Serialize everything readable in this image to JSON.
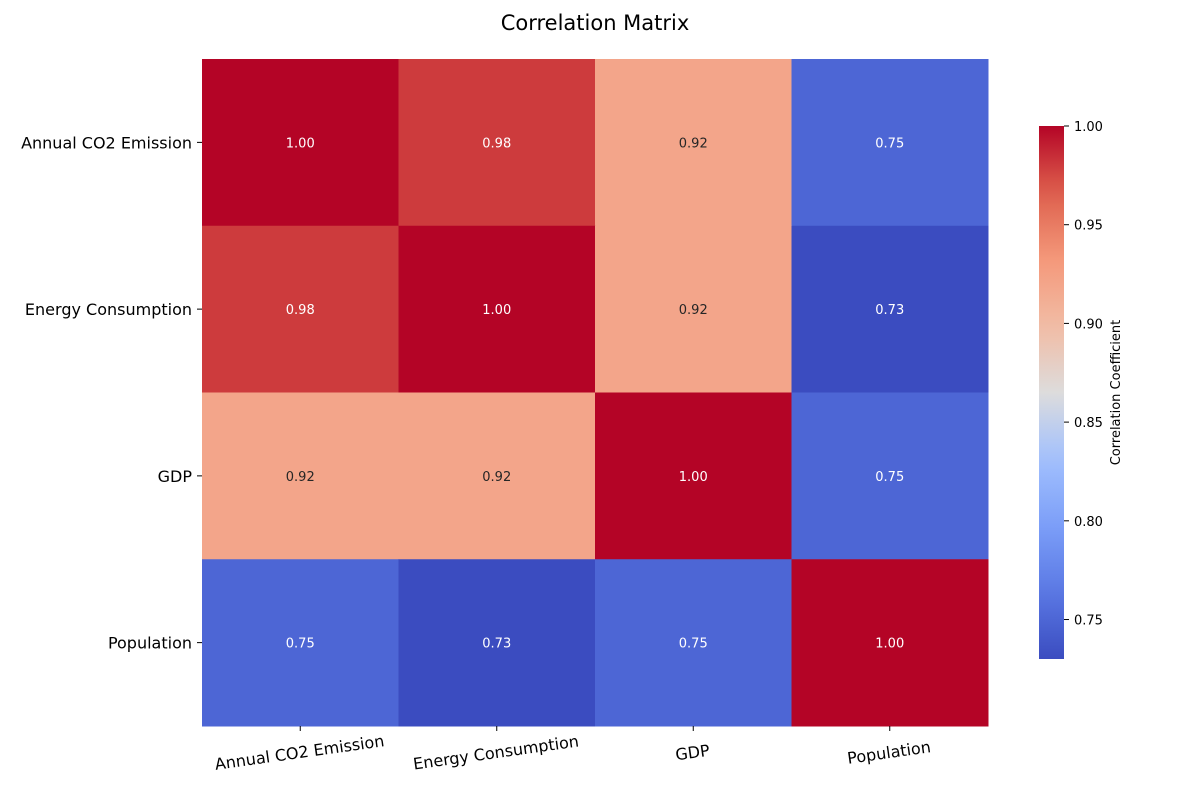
{
  "chart_data": {
    "type": "heatmap",
    "title": "Correlation Matrix",
    "row_labels": [
      "Annual CO2 Emission",
      "Energy Consumption",
      "GDP",
      "Population"
    ],
    "col_labels": [
      "Annual CO2 Emission",
      "Energy Consumption",
      "GDP",
      "Population"
    ],
    "values": [
      [
        1.0,
        0.98,
        0.92,
        0.75
      ],
      [
        0.98,
        1.0,
        0.92,
        0.73
      ],
      [
        0.92,
        0.92,
        1.0,
        0.75
      ],
      [
        0.75,
        0.73,
        0.75,
        1.0
      ]
    ],
    "annotation_format": "2f",
    "colormap": "coolwarm",
    "colorbar": {
      "label": "Correlation Coefficient",
      "range": [
        0.73,
        1.0
      ],
      "ticks": [
        0.75,
        0.8,
        0.85,
        0.9,
        0.95,
        1.0
      ],
      "tick_labels": [
        "0.75",
        "0.80",
        "0.85",
        "0.90",
        "0.95",
        "1.00"
      ]
    },
    "colors": {
      "low": "#3b4cc0",
      "mid": "#dddcdc",
      "high": "#b40426",
      "dark_text": "#262626",
      "light_text": "#ffffff"
    }
  }
}
